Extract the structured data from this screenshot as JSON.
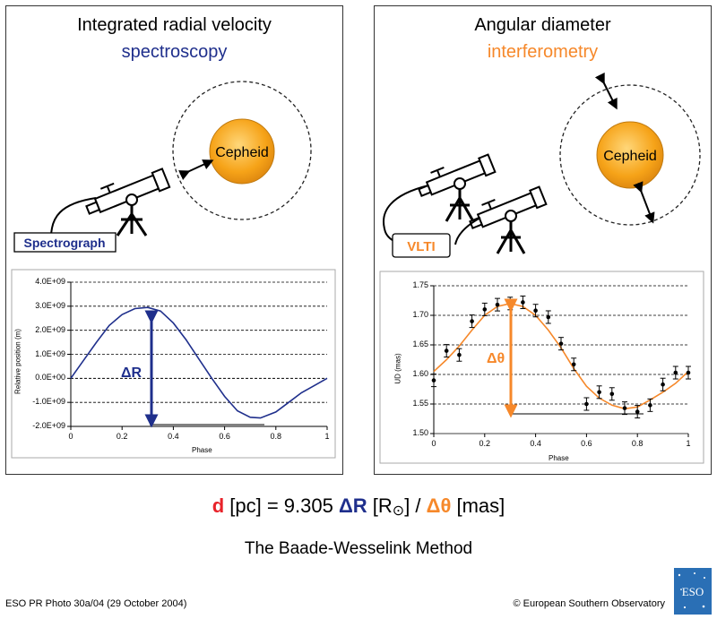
{
  "left": {
    "title": "Integrated radial velocity",
    "subtitle": "spectroscopy",
    "star_label": "Cepheid",
    "instrument_label": "Spectrograph",
    "delta_label": "ΔR"
  },
  "right": {
    "title": "Angular diameter",
    "subtitle": "interferometry",
    "star_label": "Cepheid",
    "instrument_label": "VLTI",
    "delta_label": "Δθ"
  },
  "formula": {
    "d": "d",
    "part1": " [pc] = 9.305 ",
    "dr": "ΔR",
    "part2": " [R",
    "sun": "⊙",
    "part3": "] / ",
    "dtheta": "Δθ",
    "part4": " [mas]"
  },
  "caption": "The Baade-Wesselink Method",
  "footer_left": "ESO PR Photo 30a/04 (29 October 2004)",
  "footer_right": "© European Southern Observatory",
  "logo_text": "ESO",
  "colors": {
    "blue": "#1f2f8c",
    "orange": "#f6882a",
    "red": "#e8232a",
    "star": "#f6a318"
  },
  "chart_data": [
    {
      "type": "line",
      "xlabel": "Phase",
      "ylabel": "Relative position (m)",
      "xlim": [
        0,
        1
      ],
      "ylim": [
        -2000000000.0,
        4000000000.0
      ],
      "xticks": [
        "0",
        "0.2",
        "0.4",
        "0.6",
        "0.8",
        "1"
      ],
      "yticks": [
        "4.0E+09",
        "3.0E+09",
        "2.0E+09",
        "1.0E+09",
        "0.0E+00",
        "-1.0E+09",
        "-2.0E+09"
      ],
      "grid": "horizontal dashed",
      "x": [
        0,
        0.05,
        0.1,
        0.15,
        0.2,
        0.25,
        0.3,
        0.35,
        0.4,
        0.45,
        0.5,
        0.55,
        0.6,
        0.65,
        0.7,
        0.74,
        0.8,
        0.85,
        0.9,
        0.95,
        1.0
      ],
      "y": [
        0.0,
        750000000.0,
        1500000000.0,
        2200000000.0,
        2650000000.0,
        2900000000.0,
        2950000000.0,
        2800000000.0,
        2300000000.0,
        1600000000.0,
        800000000.0,
        0.0,
        -750000000.0,
        -1350000000.0,
        -1620000000.0,
        -1650000000.0,
        -1400000000.0,
        -1000000000.0,
        -600000000.0,
        -300000000.0,
        0.0
      ]
    },
    {
      "type": "scatter",
      "xlabel": "Phase",
      "ylabel": "UD (mas)",
      "xlim": [
        0,
        1
      ],
      "ylim": [
        1.5,
        1.75
      ],
      "xticks": [
        "0",
        "0.2",
        "0.4",
        "0.6",
        "0.8",
        "1"
      ],
      "yticks": [
        "1.75",
        "1.70",
        "1.65",
        "1.60",
        "1.55",
        "1.50"
      ],
      "grid": "horizontal dashed",
      "points_x": [
        0.0,
        0.05,
        0.1,
        0.15,
        0.2,
        0.25,
        0.3,
        0.35,
        0.4,
        0.45,
        0.5,
        0.55,
        0.6,
        0.65,
        0.7,
        0.75,
        0.8,
        0.85,
        0.9,
        0.95,
        1.0
      ],
      "points_y": [
        1.59,
        1.64,
        1.633,
        1.69,
        1.71,
        1.718,
        1.72,
        1.722,
        1.708,
        1.697,
        1.652,
        1.617,
        1.55,
        1.57,
        1.567,
        1.543,
        1.537,
        1.548,
        1.583,
        1.603,
        1.603
      ],
      "fit_x": [
        0.0,
        0.05,
        0.1,
        0.15,
        0.2,
        0.25,
        0.3,
        0.35,
        0.4,
        0.45,
        0.5,
        0.55,
        0.6,
        0.65,
        0.7,
        0.75,
        0.8,
        0.85,
        0.9,
        0.95,
        1.0
      ],
      "fit_y": [
        1.605,
        1.625,
        1.648,
        1.675,
        1.7,
        1.715,
        1.72,
        1.715,
        1.7,
        1.675,
        1.645,
        1.61,
        1.58,
        1.56,
        1.548,
        1.542,
        1.545,
        1.557,
        1.57,
        1.585,
        1.605
      ]
    }
  ]
}
